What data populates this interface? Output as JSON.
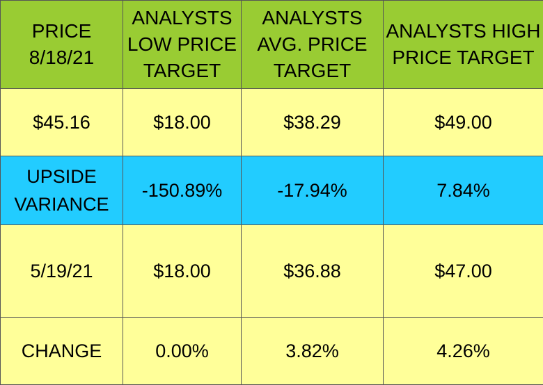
{
  "header": {
    "col1": "PRICE 8/18/21",
    "col2": "ANALYSTS LOW PRICE TARGET",
    "col3": "ANALYSTS AVG. PRICE TARGET",
    "col4": "ANALYSTS HIGH PRICE TARGET"
  },
  "rows": [
    {
      "label": "$45.16",
      "low": "$18.00",
      "avg": "$38.29",
      "high": "$49.00"
    },
    {
      "label": "UPSIDE VARIANCE",
      "low": "-150.89%",
      "avg": "-17.94%",
      "high": "7.84%"
    },
    {
      "label": "5/19/21",
      "low": "$18.00",
      "avg": "$36.88",
      "high": "$47.00"
    },
    {
      "label": "CHANGE",
      "low": "0.00%",
      "avg": "3.82%",
      "high": "4.26%"
    }
  ],
  "colors": {
    "header_bg": "#99cc33",
    "row_bg": "#ffff99",
    "highlight_bg": "#22ccff"
  }
}
